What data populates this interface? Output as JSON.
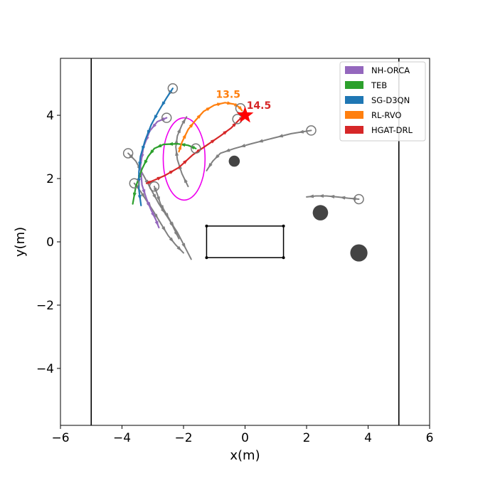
{
  "chart_data": {
    "type": "line",
    "xlabel": "x(m)",
    "ylabel": "y(m)",
    "xlim": [
      -6,
      6
    ],
    "ylim": [
      -5.8,
      5.8
    ],
    "xticks": [
      -6,
      -4,
      -2,
      0,
      2,
      4,
      6
    ],
    "yticks": [
      -4,
      -2,
      0,
      2,
      4
    ],
    "xtick_labels": [
      "−6",
      "−4",
      "−2",
      "0",
      "2",
      "4",
      "6"
    ],
    "ytick_labels": [
      "−4",
      "−2",
      "0",
      "2",
      "4"
    ],
    "grid": false,
    "legend_position": "top-right",
    "walls": [
      {
        "x": -5,
        "color": "#000000"
      },
      {
        "x": 5,
        "color": "#000000"
      }
    ],
    "obstacle_rectangle": {
      "x": [
        -1.25,
        1.25
      ],
      "y": [
        -0.5,
        0.5
      ],
      "color": "#000000"
    },
    "static_obstacles": [
      {
        "x": -0.35,
        "y": 2.55,
        "r": 0.18,
        "color": "#444444"
      },
      {
        "x": 2.45,
        "y": 0.92,
        "r": 0.25,
        "color": "#444444"
      },
      {
        "x": 3.7,
        "y": -0.35,
        "r": 0.28,
        "color": "#444444"
      }
    ],
    "highlight_ellipse": {
      "cx": -1.98,
      "cy": 2.62,
      "rx": 0.68,
      "ry": 1.3,
      "color": "#ee00ee"
    },
    "goal": {
      "x": 0.0,
      "y": 4.0,
      "color": "#ff0000"
    },
    "series": [
      {
        "name": "NH-ORCA",
        "color": "#9467bd",
        "x": [
          -2.55,
          -2.85,
          -3.1,
          -3.3,
          -3.4,
          -3.35,
          -3.2,
          -3.05,
          -2.9,
          -2.8
        ],
        "y": [
          3.92,
          3.8,
          3.5,
          3.0,
          2.4,
          1.8,
          1.35,
          1.0,
          0.7,
          0.45
        ]
      },
      {
        "name": "TEB",
        "color": "#2ca02c",
        "x": [
          -1.6,
          -1.85,
          -2.2,
          -2.65,
          -2.95,
          -3.15,
          -3.35,
          -3.55,
          -3.65
        ],
        "y": [
          2.95,
          3.05,
          3.1,
          3.08,
          2.95,
          2.7,
          2.3,
          1.75,
          1.2
        ]
      },
      {
        "name": "SG-D3QN",
        "color": "#1f77b4",
        "x": [
          -2.35,
          -2.55,
          -2.8,
          -3.05,
          -3.25,
          -3.4,
          -3.45,
          -3.45,
          -3.38
        ],
        "y": [
          4.85,
          4.55,
          4.15,
          3.7,
          3.2,
          2.7,
          2.2,
          1.65,
          1.15
        ]
      },
      {
        "name": "RL-RVO",
        "color": "#ff7f0e",
        "x": [
          -2.15,
          -2.05,
          -1.85,
          -1.6,
          -1.35,
          -1.0,
          -0.65,
          -0.35,
          -0.18,
          -0.1
        ],
        "y": [
          2.85,
          3.15,
          3.55,
          3.85,
          4.12,
          4.32,
          4.4,
          4.35,
          4.25,
          4.15
        ]
      },
      {
        "name": " HGAT-DRL",
        "color": "#d62728",
        "x": [
          -3.2,
          -2.95,
          -2.6,
          -2.15,
          -1.7,
          -1.25,
          -0.8,
          -0.45,
          -0.2,
          0.0
        ],
        "y": [
          1.85,
          1.95,
          2.1,
          2.35,
          2.75,
          3.05,
          3.35,
          3.6,
          3.85,
          4.0
        ]
      }
    ],
    "pedestrians": [
      {
        "color": "#808080",
        "x": [
          -3.8,
          -3.55,
          -3.3,
          -3.05,
          -2.8,
          -2.5,
          -2.2,
          -1.75
        ],
        "y": [
          2.8,
          2.55,
          2.1,
          1.65,
          1.2,
          0.75,
          0.3,
          -0.55
        ]
      },
      {
        "color": "#808080",
        "x": [
          -3.6,
          -3.4,
          -3.2,
          -3.0,
          -2.75,
          -2.5,
          -2.25,
          -2.0
        ],
        "y": [
          1.85,
          1.6,
          1.3,
          1.0,
          0.6,
          0.2,
          -0.1,
          -0.35
        ]
      },
      {
        "color": "#808080",
        "x": [
          -2.95,
          -2.85,
          -2.75,
          -2.6,
          -2.45,
          -2.3,
          -2.15
        ],
        "y": [
          1.75,
          1.5,
          1.2,
          0.95,
          0.7,
          0.4,
          0.1
        ]
      },
      {
        "color": "#808080",
        "x": [
          -1.85,
          -2.05,
          -2.2,
          -2.25,
          -2.2,
          -2.05,
          -1.9
        ],
        "y": [
          1.75,
          2.15,
          2.6,
          3.0,
          3.35,
          3.7,
          3.95
        ]
      },
      {
        "color": "#808080",
        "x": [
          2.15,
          1.5,
          0.8,
          0.2,
          -0.35,
          -0.8,
          -1.05,
          -1.25
        ],
        "y": [
          3.52,
          3.42,
          3.25,
          3.1,
          2.95,
          2.8,
          2.55,
          2.25
        ]
      },
      {
        "color": "#808080",
        "x": [
          3.7,
          3.35,
          3.0,
          2.65,
          2.3,
          2.0
        ],
        "y": [
          1.35,
          1.38,
          1.42,
          1.45,
          1.45,
          1.42
        ]
      }
    ],
    "start_markers": [
      {
        "x": -3.8,
        "y": 2.8
      },
      {
        "x": -3.6,
        "y": 1.85
      },
      {
        "x": -2.95,
        "y": 1.75
      },
      {
        "x": -2.55,
        "y": 3.92
      },
      {
        "x": -2.35,
        "y": 4.85
      },
      {
        "x": -1.6,
        "y": 2.95
      },
      {
        "x": -0.25,
        "y": 3.88
      },
      {
        "x": -0.15,
        "y": 4.22
      },
      {
        "x": 2.15,
        "y": 3.52
      },
      {
        "x": 3.7,
        "y": 1.35
      }
    ],
    "annotations": [
      {
        "text": "13.5",
        "x": -0.55,
        "y": 4.55,
        "color": "#ff7f0e"
      },
      {
        "text": "14.5",
        "x": 0.45,
        "y": 4.2,
        "color": "#d62728"
      }
    ]
  }
}
